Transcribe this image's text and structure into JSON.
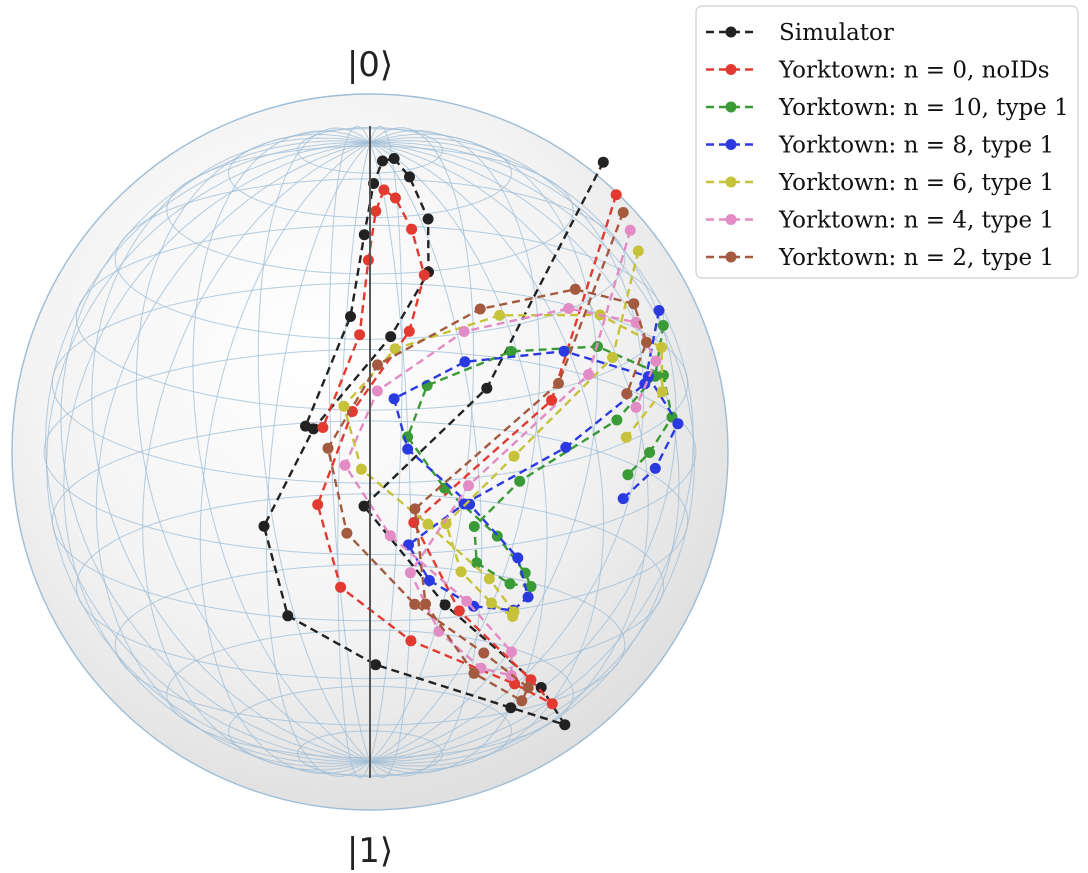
{
  "chart_data": {
    "type": "line",
    "subtype": "bloch-sphere-trajectories",
    "pole_labels": {
      "top": "|0⟩",
      "bottom": "|1⟩"
    },
    "legend_position": "top-right",
    "grid": true,
    "sphere_style": {
      "fill": "#ececec",
      "wire": "#9dbcd6"
    },
    "series": [
      {
        "name": "Simulator",
        "color": "#222222",
        "points": [
          [
            1.0,
            0.0,
            0.85
          ],
          [
            0.81,
            0.45,
            0.42
          ],
          [
            0.68,
            0.62,
            0.05
          ],
          [
            0.62,
            0.48,
            -0.32
          ],
          [
            0.76,
            0.25,
            -0.68
          ],
          [
            0.88,
            0.05,
            -0.92
          ],
          [
            0.92,
            -0.15,
            -0.98
          ],
          [
            0.88,
            -0.38,
            -0.9
          ],
          [
            0.79,
            -0.52,
            -0.72
          ],
          [
            0.7,
            -0.56,
            -0.42
          ],
          [
            0.62,
            -0.48,
            -0.12
          ],
          [
            0.55,
            -0.35,
            0.2
          ],
          [
            0.48,
            -0.22,
            0.48
          ],
          [
            0.41,
            -0.05,
            0.72
          ],
          [
            0.33,
            0.12,
            0.89
          ],
          [
            0.24,
            0.25,
            0.96
          ],
          [
            0.14,
            0.32,
            0.95
          ],
          [
            0.04,
            0.3,
            0.87
          ],
          [
            -0.06,
            0.22,
            0.7
          ],
          [
            -0.16,
            0.08,
            0.44
          ],
          [
            -0.25,
            -0.05,
            0.12
          ]
        ]
      },
      {
        "name": "Yorktown: n = 0, noIDs",
        "color": "#e23a30",
        "points": [
          [
            1.0,
            0.0,
            0.74
          ],
          [
            0.84,
            0.36,
            0.35
          ],
          [
            0.7,
            0.55,
            0.0
          ],
          [
            0.62,
            0.45,
            -0.35
          ],
          [
            0.72,
            0.25,
            -0.66
          ],
          [
            0.82,
            0.05,
            -0.85
          ],
          [
            0.85,
            -0.12,
            -0.88
          ],
          [
            0.8,
            -0.32,
            -0.8
          ],
          [
            0.7,
            -0.44,
            -0.62
          ],
          [
            0.62,
            -0.48,
            -0.35
          ],
          [
            0.55,
            -0.42,
            -0.05
          ],
          [
            0.48,
            -0.3,
            0.25
          ],
          [
            0.41,
            -0.18,
            0.5
          ],
          [
            0.33,
            -0.03,
            0.7
          ],
          [
            0.25,
            0.1,
            0.82
          ],
          [
            0.16,
            0.18,
            0.85
          ],
          [
            0.07,
            0.2,
            0.78
          ],
          [
            -0.02,
            0.16,
            0.62
          ],
          [
            -0.1,
            0.08,
            0.38
          ],
          [
            -0.18,
            -0.02,
            0.1
          ]
        ]
      },
      {
        "name": "Yorktown: n = 10, type 1",
        "color": "#3a9a36",
        "points": [
          [
            1.0,
            0.0,
            0.3
          ],
          [
            0.92,
            0.15,
            0.28
          ],
          [
            0.86,
            0.25,
            0.22
          ],
          [
            0.75,
            0.4,
            0.1
          ],
          [
            0.66,
            0.45,
            -0.05
          ],
          [
            0.6,
            0.42,
            -0.2
          ],
          [
            0.58,
            0.3,
            -0.33
          ],
          [
            0.6,
            0.14,
            -0.42
          ],
          [
            0.64,
            -0.02,
            -0.46
          ],
          [
            0.69,
            -0.16,
            -0.42
          ],
          [
            0.74,
            -0.28,
            -0.33
          ],
          [
            0.78,
            -0.34,
            -0.2
          ],
          [
            0.82,
            -0.32,
            -0.05
          ],
          [
            0.86,
            -0.22,
            0.08
          ],
          [
            0.9,
            -0.1,
            0.16
          ],
          [
            0.94,
            0.04,
            0.18
          ],
          [
            0.95,
            0.16,
            0.16
          ],
          [
            0.94,
            0.24,
            0.12
          ],
          [
            0.92,
            0.28,
            0.08
          ]
        ]
      },
      {
        "name": "Yorktown: n = 8, type 1",
        "color": "#2a3ae0",
        "points": [
          [
            1.0,
            0.0,
            0.35
          ],
          [
            0.92,
            0.2,
            0.3
          ],
          [
            0.84,
            0.35,
            0.2
          ],
          [
            0.72,
            0.48,
            0.05
          ],
          [
            0.62,
            0.55,
            -0.1
          ],
          [
            0.56,
            0.5,
            -0.25
          ],
          [
            0.55,
            0.38,
            -0.38
          ],
          [
            0.58,
            0.22,
            -0.46
          ],
          [
            0.63,
            0.05,
            -0.5
          ],
          [
            0.69,
            -0.1,
            -0.46
          ],
          [
            0.75,
            -0.24,
            -0.37
          ],
          [
            0.79,
            -0.34,
            -0.24
          ],
          [
            0.83,
            -0.36,
            -0.1
          ],
          [
            0.87,
            -0.28,
            0.02
          ],
          [
            0.91,
            -0.16,
            0.1
          ],
          [
            0.94,
            -0.02,
            0.12
          ],
          [
            0.95,
            0.12,
            0.1
          ],
          [
            0.93,
            0.22,
            0.05
          ],
          [
            0.9,
            0.28,
            0.0
          ]
        ]
      },
      {
        "name": "Yorktown: n = 6, type 1",
        "color": "#c6c23a",
        "points": [
          [
            1.0,
            0.0,
            0.55
          ],
          [
            0.9,
            0.25,
            0.42
          ],
          [
            0.8,
            0.42,
            0.2
          ],
          [
            0.68,
            0.5,
            -0.02
          ],
          [
            0.6,
            0.45,
            -0.22
          ],
          [
            0.57,
            0.34,
            -0.38
          ],
          [
            0.58,
            0.18,
            -0.5
          ],
          [
            0.62,
            0.02,
            -0.56
          ],
          [
            0.68,
            -0.15,
            -0.54
          ],
          [
            0.74,
            -0.3,
            -0.44
          ],
          [
            0.78,
            -0.4,
            -0.3
          ],
          [
            0.82,
            -0.42,
            -0.12
          ],
          [
            0.86,
            -0.36,
            0.05
          ],
          [
            0.9,
            -0.24,
            0.18
          ],
          [
            0.93,
            -0.1,
            0.26
          ],
          [
            0.95,
            0.05,
            0.28
          ],
          [
            0.95,
            0.18,
            0.26
          ],
          [
            0.93,
            0.28,
            0.2
          ]
        ]
      },
      {
        "name": "Yorktown: n = 4, type 1",
        "color": "#e38bc4",
        "points": [
          [
            1.0,
            0.0,
            0.62
          ],
          [
            0.88,
            0.3,
            0.4
          ],
          [
            0.76,
            0.48,
            0.12
          ],
          [
            0.66,
            0.55,
            -0.18
          ],
          [
            0.6,
            0.48,
            -0.42
          ],
          [
            0.6,
            0.34,
            -0.6
          ],
          [
            0.64,
            0.16,
            -0.7
          ],
          [
            0.7,
            -0.04,
            -0.72
          ],
          [
            0.76,
            -0.22,
            -0.65
          ],
          [
            0.8,
            -0.36,
            -0.5
          ],
          [
            0.82,
            -0.42,
            -0.3
          ],
          [
            0.84,
            -0.38,
            -0.08
          ],
          [
            0.87,
            -0.28,
            0.12
          ],
          [
            0.9,
            -0.14,
            0.26
          ],
          [
            0.92,
            0.0,
            0.32
          ],
          [
            0.93,
            0.14,
            0.32
          ],
          [
            0.92,
            0.24,
            0.26
          ]
        ]
      },
      {
        "name": "Yorktown: n = 2, type 1",
        "color": "#a45a3e",
        "points": [
          [
            1.0,
            0.0,
            0.68
          ],
          [
            0.86,
            0.35,
            0.4
          ],
          [
            0.72,
            0.55,
            0.05
          ],
          [
            0.64,
            0.52,
            -0.3
          ],
          [
            0.65,
            0.4,
            -0.58
          ],
          [
            0.7,
            0.2,
            -0.76
          ],
          [
            0.76,
            0.0,
            -0.82
          ],
          [
            0.8,
            -0.18,
            -0.8
          ],
          [
            0.82,
            -0.32,
            -0.7
          ],
          [
            0.82,
            -0.42,
            -0.5
          ],
          [
            0.83,
            -0.44,
            -0.25
          ],
          [
            0.85,
            -0.38,
            0.0
          ],
          [
            0.88,
            -0.26,
            0.2
          ],
          [
            0.9,
            -0.12,
            0.34
          ],
          [
            0.92,
            0.02,
            0.4
          ],
          [
            0.92,
            0.14,
            0.38
          ],
          [
            0.9,
            0.24,
            0.3
          ]
        ]
      }
    ]
  }
}
